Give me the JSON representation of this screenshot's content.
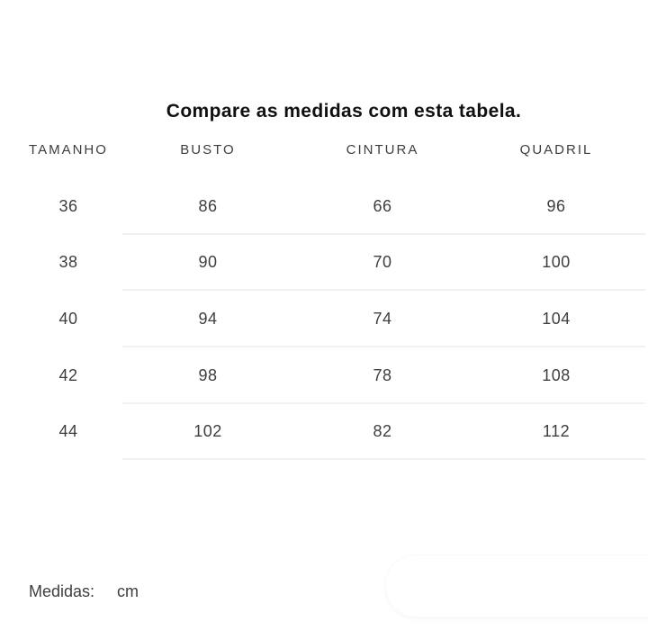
{
  "page": {
    "title": "Compare as medidas com esta tabela."
  },
  "table": {
    "headers": [
      "TAMANHO",
      "BUSTO",
      "CINTURA",
      "QUADRIL"
    ],
    "rows": [
      [
        "36",
        "86",
        "66",
        "96"
      ],
      [
        "38",
        "90",
        "70",
        "100"
      ],
      [
        "40",
        "94",
        "74",
        "104"
      ],
      [
        "42",
        "98",
        "78",
        "108"
      ],
      [
        "44",
        "102",
        "82",
        "112"
      ]
    ]
  },
  "footer": {
    "label": "Medidas:",
    "unit": "cm"
  },
  "colors": {
    "background": "#ffffff",
    "title": "#101010",
    "text": "#3e3e3e",
    "separator": "#f1f1f1"
  }
}
